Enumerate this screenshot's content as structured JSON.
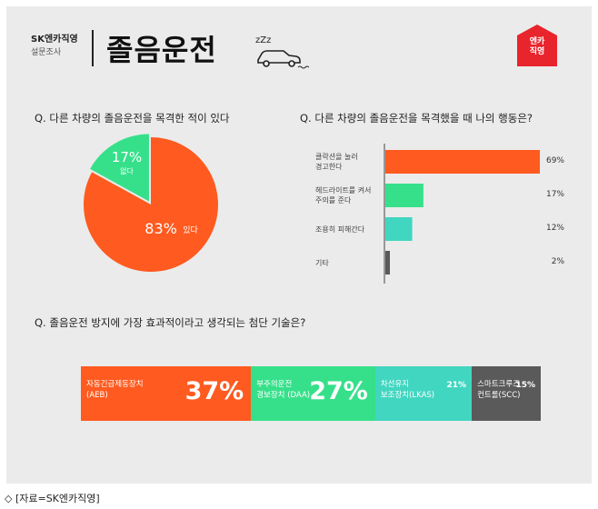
{
  "header": {
    "brand": "SK엔카직영",
    "subtitle": "설문조사",
    "title": "졸음운전",
    "sleep_text": "zZz",
    "logo_line1": "엔카",
    "logo_line2": "직영"
  },
  "questions": {
    "q1": "Q. 다른 차량의 졸음운전을 목격한 적이 있다",
    "q2": "Q. 다른 차량의 졸음운전을 목격했을 때 나의 행동은?",
    "q3": "Q. 졸음운전 방지에 가장 효과적이라고 생각되는 첨단 기술은?"
  },
  "colors": {
    "orange": "#ff5a1f",
    "green": "#36e08a",
    "teal": "#41d6c0",
    "gray": "#5a5a5a",
    "accent_red": "#e8242c"
  },
  "chart_data": [
    {
      "type": "pie",
      "slices": [
        {
          "label": "있다",
          "value": 83,
          "value_text": "83%",
          "color": "#ff5a1f"
        },
        {
          "label": "없다",
          "value": 17,
          "value_text": "17%",
          "color": "#36e08a"
        }
      ]
    },
    {
      "type": "bar",
      "orientation": "horizontal",
      "xlim": [
        0,
        69
      ],
      "bars": [
        {
          "label_lines": [
            "클락션을 눌러",
            "경고한다"
          ],
          "value": 69,
          "value_text": "69%",
          "color": "#ff5a1f"
        },
        {
          "label_lines": [
            "헤드라이트를 켜서",
            "주의를 준다"
          ],
          "value": 17,
          "value_text": "17%",
          "color": "#36e08a"
        },
        {
          "label_lines": [
            "조용히 피해간다"
          ],
          "value": 12,
          "value_text": "12%",
          "color": "#41d6c0"
        },
        {
          "label_lines": [
            "기타"
          ],
          "value": 2,
          "value_text": "2%",
          "color": "#5a5a5a"
        }
      ]
    },
    {
      "type": "bar",
      "orientation": "stacked-horizontal",
      "segments": [
        {
          "label_lines": [
            "자동긴급제동장치",
            "(AEB)"
          ],
          "value": 37,
          "value_text": "37%",
          "color": "#ff5a1f"
        },
        {
          "label_lines": [
            "부주의운전",
            "경보장치 (DAA)"
          ],
          "value": 27,
          "value_text": "27%",
          "color": "#36e08a"
        },
        {
          "label_lines": [
            "차선유지",
            "보조장치(LKAS)"
          ],
          "value": 21,
          "value_text": "21%",
          "color": "#41d6c0"
        },
        {
          "label_lines": [
            "스마트크루즈",
            "컨트롤(SCC)"
          ],
          "value": 15,
          "value_text": "15%",
          "color": "#5a5a5a"
        }
      ]
    }
  ],
  "footer": "◇ [자료=SK엔카직영]"
}
